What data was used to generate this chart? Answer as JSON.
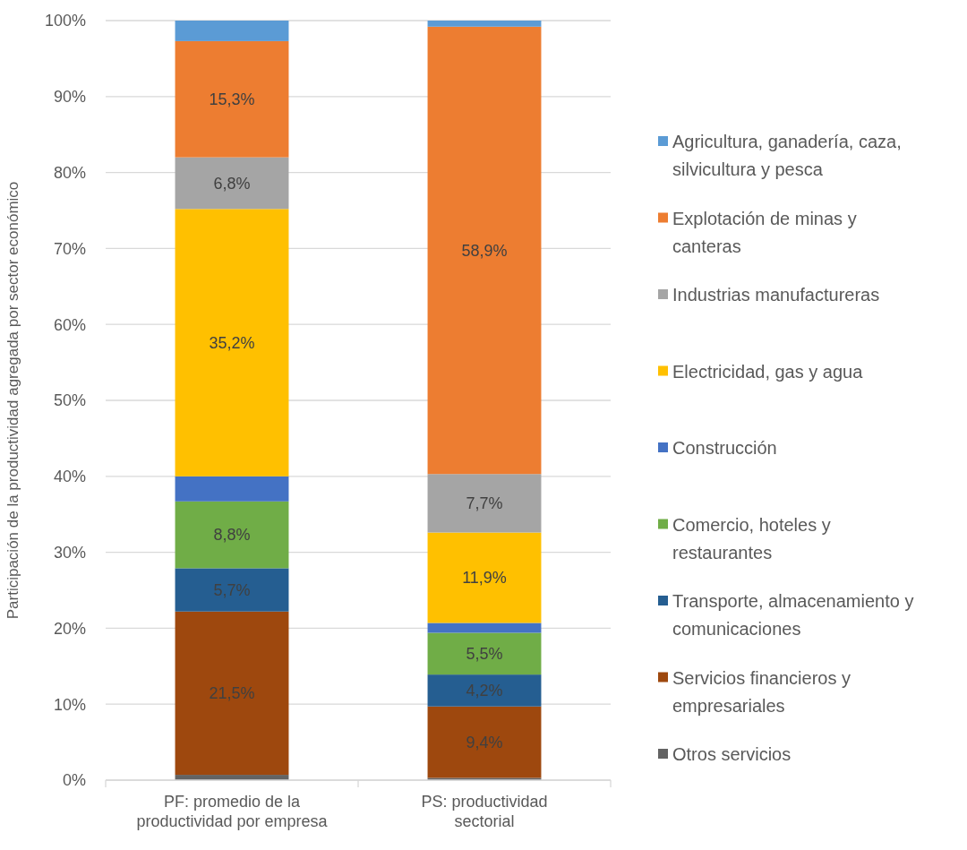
{
  "chart_data": {
    "type": "bar",
    "stacked": true,
    "ylabel": "Participación de la productividad agregada por sector económico",
    "categories": [
      "PF: promedio de la productividad por empresa",
      "PS: productividad sectorial"
    ],
    "ylim": [
      0,
      100
    ],
    "yticks": [
      {
        "value": 0,
        "label": "0%"
      },
      {
        "value": 10,
        "label": "10%"
      },
      {
        "value": 20,
        "label": "20%"
      },
      {
        "value": 30,
        "label": "30%"
      },
      {
        "value": 40,
        "label": "40%"
      },
      {
        "value": 50,
        "label": "50%"
      },
      {
        "value": 60,
        "label": "60%"
      },
      {
        "value": 70,
        "label": "70%"
      },
      {
        "value": 80,
        "label": "80%"
      },
      {
        "value": 90,
        "label": "90%"
      },
      {
        "value": 100,
        "label": "100%"
      }
    ],
    "grid": "y",
    "legend": "right",
    "series": [
      {
        "name": "Otros servicios",
        "color": "#636363",
        "values": [
          0.7,
          0.3
        ],
        "value_labels": [
          null,
          null
        ]
      },
      {
        "name": "Servicios financieros y empresariales",
        "color": "#9e480e",
        "values": [
          21.5,
          9.4
        ],
        "value_labels": [
          "21,5%",
          "9,4%"
        ]
      },
      {
        "name": "Transporte, almacenamiento y comunicaciones",
        "color": "#255e91",
        "values": [
          5.7,
          4.2
        ],
        "value_labels": [
          "5,7%",
          "4,2%"
        ]
      },
      {
        "name": "Comercio, hoteles y restaurantes",
        "color": "#70ad47",
        "values": [
          8.8,
          5.5
        ],
        "value_labels": [
          "8,8%",
          "5,5%"
        ]
      },
      {
        "name": "Construcción",
        "color": "#4472c4",
        "values": [
          3.3,
          1.3
        ],
        "value_labels": [
          null,
          null
        ]
      },
      {
        "name": "Electricidad, gas y agua",
        "color": "#ffc000",
        "values": [
          35.2,
          11.9
        ],
        "value_labels": [
          "35,2%",
          "11,9%"
        ]
      },
      {
        "name": "Industrias manufactureras",
        "color": "#a5a5a5",
        "values": [
          6.8,
          7.7
        ],
        "value_labels": [
          "6,8%",
          "7,7%"
        ]
      },
      {
        "name": "Explotación de minas y canteras",
        "color": "#ed7d31",
        "values": [
          15.3,
          58.9
        ],
        "value_labels": [
          "15,3%",
          "58,9%"
        ]
      },
      {
        "name": "Agricultura, ganadería, caza, silvicultura y pesca",
        "color": "#5b9bd5",
        "values": [
          2.7,
          0.8
        ],
        "value_labels": [
          null,
          null
        ]
      }
    ]
  }
}
